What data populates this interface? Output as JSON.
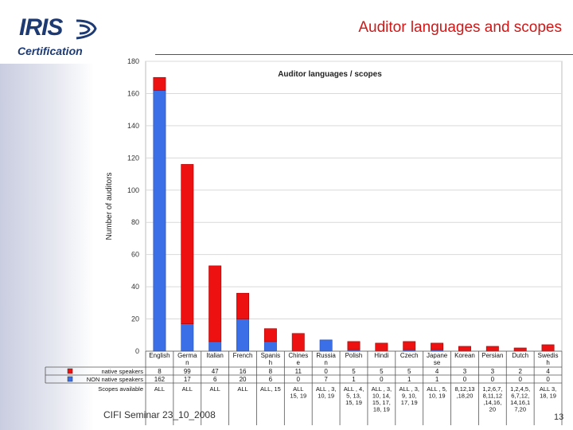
{
  "slide": {
    "title": "Auditor languages and scopes",
    "logo_text": "IRIS",
    "logo_sub": "Certification",
    "footer": "CIFI Seminar 23_10_2008",
    "page_number": "13"
  },
  "colors": {
    "native": "#ee1111",
    "non_native": "#3a6fe8",
    "title": "#d01818"
  },
  "chart_data": {
    "type": "bar",
    "stacked": true,
    "title": "Auditor languages / scopes",
    "ylabel": "Number of auditors",
    "ylim": [
      0,
      180
    ],
    "yticks": [
      "0",
      "20",
      "40",
      "60",
      "80",
      "100",
      "120",
      "140",
      "160",
      "180"
    ],
    "grid": true,
    "categories": [
      "English",
      "Germa n",
      "Italian",
      "French",
      "Spanis h",
      "Chines e",
      "Russia n",
      "Polish",
      "Hindi",
      "Czech",
      "Japane se",
      "Korean",
      "Persian",
      "Dutch",
      "Swedis h"
    ],
    "category_lines": [
      [
        "English"
      ],
      [
        "Germa",
        "n"
      ],
      [
        "Italian"
      ],
      [
        "French"
      ],
      [
        "Spanis",
        "h"
      ],
      [
        "Chines",
        "e"
      ],
      [
        "Russia",
        "n"
      ],
      [
        "Polish"
      ],
      [
        "Hindi"
      ],
      [
        "Czech"
      ],
      [
        "Japane",
        "se"
      ],
      [
        "Korean"
      ],
      [
        "Persian"
      ],
      [
        "Dutch"
      ],
      [
        "Swedis",
        "h"
      ]
    ],
    "series": [
      {
        "name": "native speakers",
        "color": "#ee1111",
        "values": [
          8,
          99,
          47,
          16,
          8,
          11,
          0,
          5,
          5,
          5,
          4,
          3,
          3,
          2,
          4
        ],
        "labels": [
          "8",
          "99",
          "47",
          "16",
          "8",
          "11",
          "0",
          "5",
          "5",
          "5",
          "4",
          "3",
          "3",
          "2",
          "4"
        ]
      },
      {
        "name": "NON native speakers",
        "color": "#3a6fe8",
        "values": [
          162,
          17,
          6,
          20,
          6,
          0,
          7,
          1,
          0,
          1,
          1,
          0,
          0,
          0,
          0
        ],
        "labels": [
          "162",
          "17",
          "6",
          "20",
          "6",
          "0",
          "7",
          "1",
          "0",
          "1",
          "1",
          "0",
          "0",
          "0",
          "0"
        ]
      }
    ],
    "scopes_row_label": "Scopes available",
    "scopes": [
      [
        "ALL"
      ],
      [
        "ALL"
      ],
      [
        "ALL"
      ],
      [
        "ALL"
      ],
      [
        "ALL, 15"
      ],
      [
        "ALL",
        "15, 19"
      ],
      [
        "ALL , 3,",
        "10, 19"
      ],
      [
        "ALL , 4,",
        "5, 13,",
        "15, 19"
      ],
      [
        "ALL , 3,",
        "10, 14,",
        "15, 17,",
        "18, 19"
      ],
      [
        "ALL , 3,",
        "9, 10,",
        "17, 19"
      ],
      [
        "ALL , 5,",
        "10, 19"
      ],
      [
        "8,12,13",
        ",18,20"
      ],
      [
        "1,2,6,7,",
        "8,11,12",
        ",14,16,",
        "20"
      ],
      [
        "1,2,4,5,",
        "6,7,12,",
        "14,16,1",
        "7,20"
      ],
      [
        "ALL 3,",
        "18, 19"
      ]
    ]
  }
}
